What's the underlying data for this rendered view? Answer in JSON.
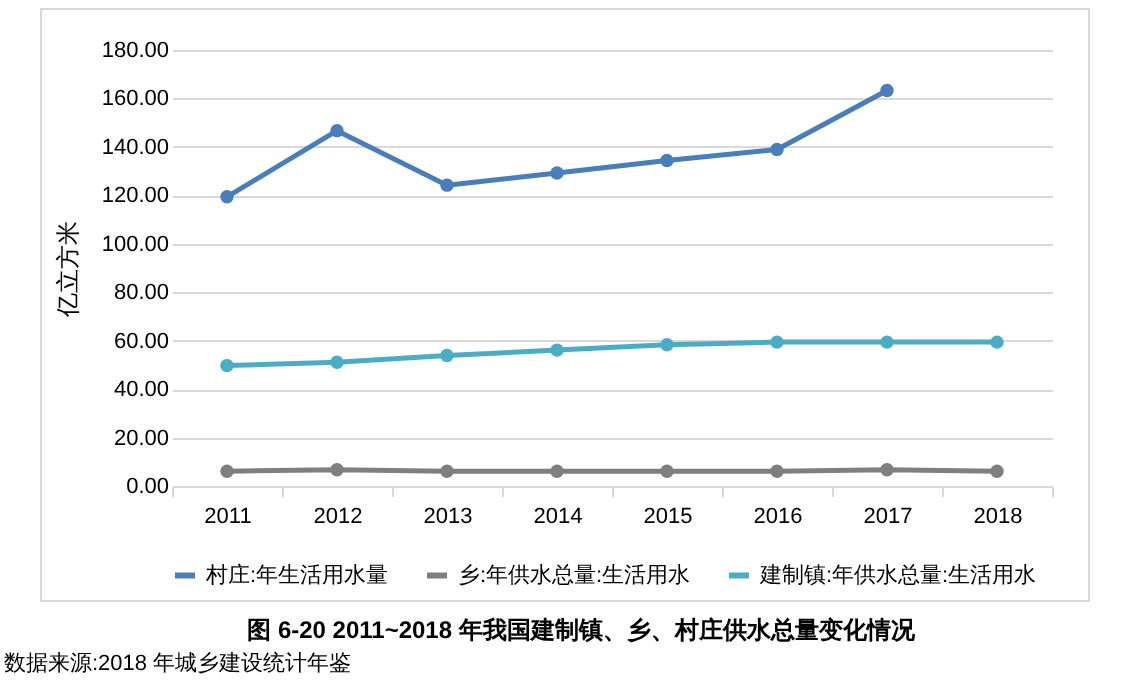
{
  "chart_data": {
    "type": "line",
    "ylabel": "亿立方米",
    "title": "图  6-20 2011~2018 年我国建制镇、乡、村庄供水总量变化情况",
    "annotations": [
      "数据来源:2018 年城乡建设统计年鉴"
    ],
    "categories": [
      "2011",
      "2012",
      "2013",
      "2014",
      "2015",
      "2016",
      "2017",
      "2018"
    ],
    "series": [
      {
        "name": "村庄:年生活用水量",
        "color": "#4a7ebb",
        "values": [
          119.4,
          146.7,
          124.2,
          129.2,
          134.4,
          138.9,
          163.3,
          null
        ]
      },
      {
        "name": "乡:年供水总量:生活用水",
        "color": "#7f7f7f",
        "values": [
          6.1,
          6.7,
          6.1,
          6.1,
          6.1,
          6.1,
          6.7,
          6.1
        ]
      },
      {
        "name": "建制镇:年供水总量:生活用水",
        "color": "#4bacc6",
        "values": [
          49.7,
          51.1,
          53.9,
          56.1,
          58.3,
          59.4,
          59.4,
          59.4
        ]
      }
    ],
    "ylim": [
      0,
      180
    ],
    "yticks": [
      {
        "value": 0,
        "label": "0.00"
      },
      {
        "value": 20,
        "label": "20.00"
      },
      {
        "value": 40,
        "label": "40.00"
      },
      {
        "value": 60,
        "label": "60.00"
      },
      {
        "value": 80,
        "label": "80.00"
      },
      {
        "value": 100,
        "label": "100.00"
      },
      {
        "value": 120,
        "label": "120.00"
      },
      {
        "value": 140,
        "label": "140.00"
      },
      {
        "value": 160,
        "label": "160.00"
      },
      {
        "value": 180,
        "label": "180.00"
      }
    ],
    "grid": "y",
    "legend": "bottom",
    "marker": "circle",
    "line_style": "solid"
  }
}
